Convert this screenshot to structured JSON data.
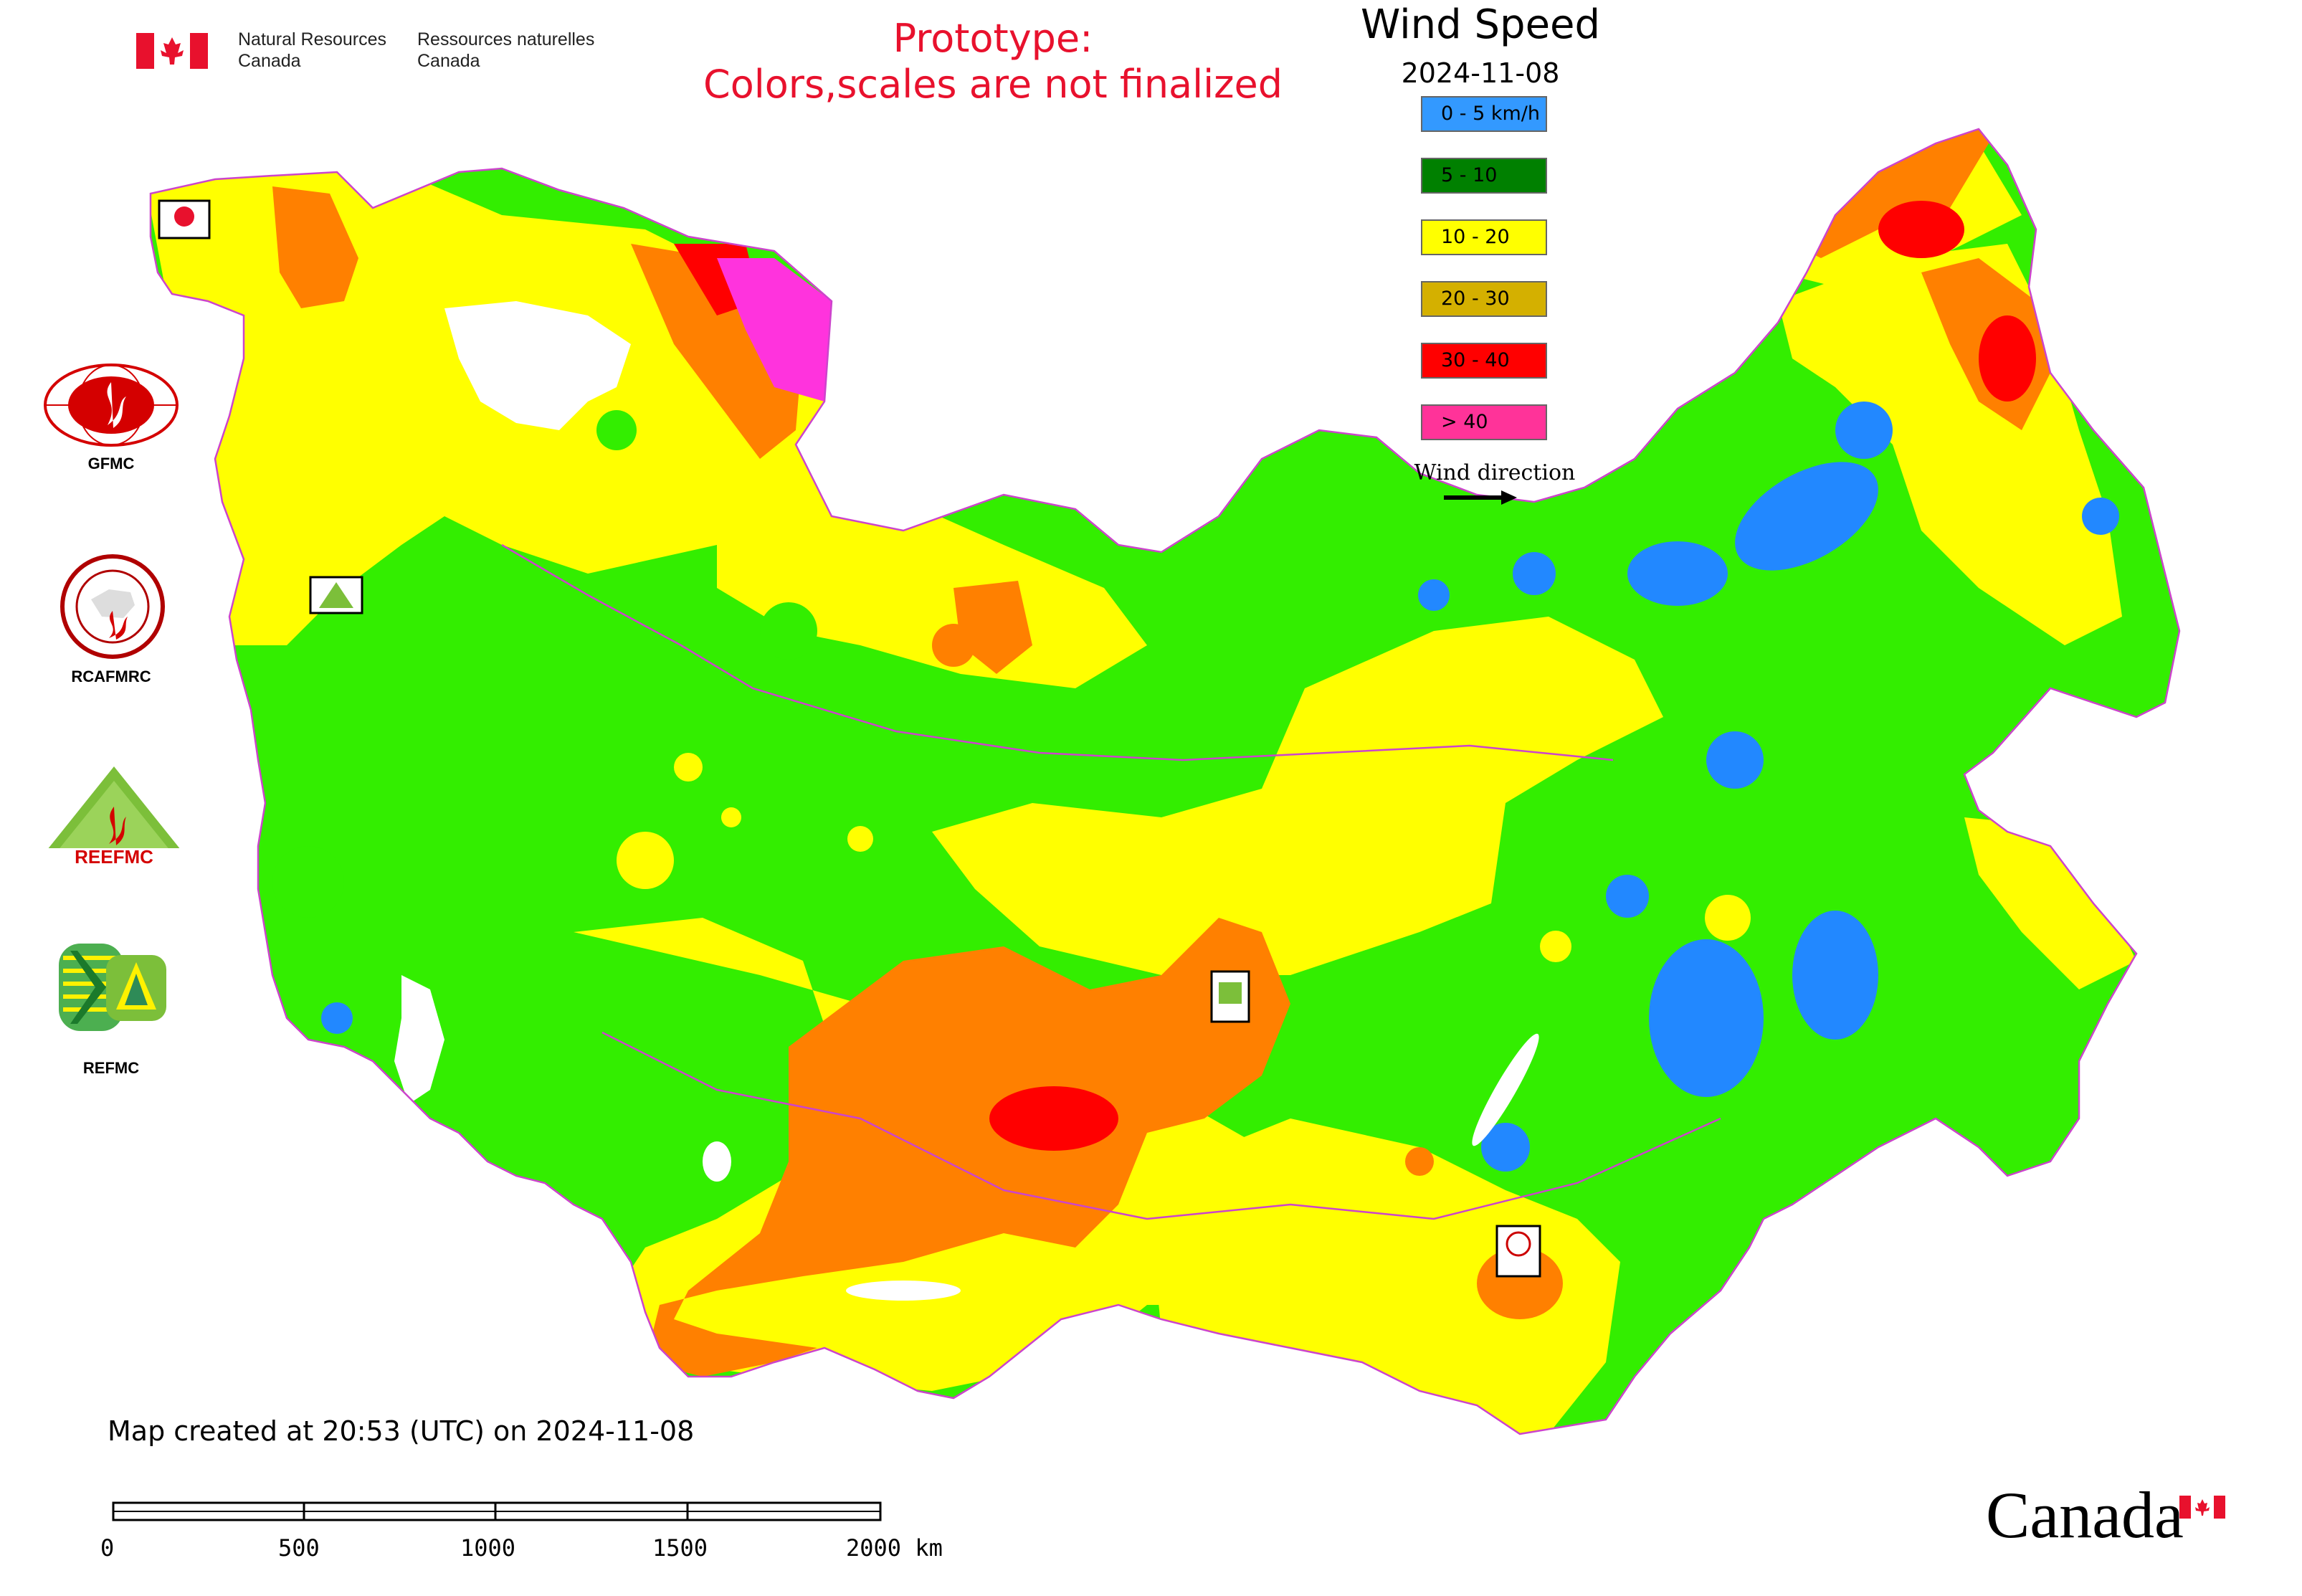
{
  "header": {
    "org_en_line1": "Natural Resources",
    "org_en_line2": "Canada",
    "org_fr_line1": "Ressources naturelles",
    "org_fr_line2": "Canada",
    "notice_line1": "Prototype:",
    "notice_line2": "Colors,scales are not finalized"
  },
  "legend": {
    "title": "Wind Speed",
    "date": "2024-11-08",
    "classes": [
      {
        "label": "0 - 5 km/h",
        "color": "#3399ff"
      },
      {
        "label": "5 - 10",
        "color": "#008000"
      },
      {
        "label": "10 - 20",
        "color": "#ffff00"
      },
      {
        "label": "20 - 30",
        "color": "#d4b000"
      },
      {
        "label": "30 - 40",
        "color": "#ff0000"
      },
      {
        "label": "> 40",
        "color": "#ff3399"
      }
    ],
    "wind_direction_label": "Wind direction"
  },
  "map_palette": {
    "land_green": "#33ee00",
    "calm_blue": "#2288ff",
    "moderate_yellow": "#ffff00",
    "strong_orange": "#ff8000",
    "very_strong_red": "#ff0000",
    "extreme_magenta": "#ff33dd",
    "water_white": "#ffffff",
    "borders_purple": "#cc44cc"
  },
  "organizations": [
    {
      "label": "GFMC"
    },
    {
      "label": "RCAFMRC"
    },
    {
      "label": "REEFMC"
    },
    {
      "label": "REFMC"
    }
  ],
  "footer": {
    "created_text": "Map created at 20:53 (UTC) on 2024-11-08"
  },
  "scale_bar": {
    "ticks": [
      "0",
      "500",
      "1000",
      "1500",
      "2000 km"
    ]
  },
  "wordmark": "Canada"
}
